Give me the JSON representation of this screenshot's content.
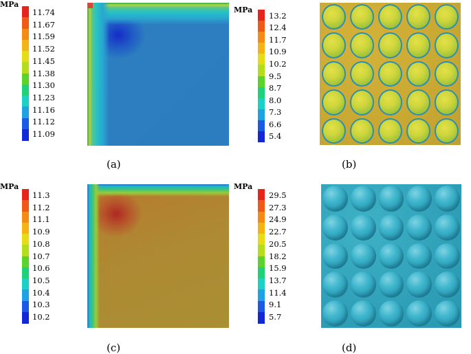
{
  "panels": {
    "a": {
      "caption": "(a)",
      "unit": "MPa",
      "ticks": [
        "11.74",
        "11.67",
        "11.59",
        "11.52",
        "11.45",
        "11.38",
        "11.30",
        "11.23",
        "11.16",
        "11.12",
        "11.09"
      ]
    },
    "a_right": {
      "unit": "MPa",
      "ticks": [
        "13.2",
        "12.4",
        "11.7",
        "10.9",
        "10.2",
        "9.5",
        "8.7",
        "8.0",
        "7.3",
        "6.6",
        "5.4"
      ]
    },
    "b": {
      "caption": "(b)"
    },
    "c": {
      "caption": "(c)",
      "unit": "MPa",
      "ticks": [
        "11.3",
        "11.2",
        "11.1",
        "10.9",
        "10.8",
        "10.7",
        "10.6",
        "10.5",
        "10.4",
        "10.3",
        "10.2"
      ]
    },
    "c_right": {
      "unit": "MPa",
      "ticks": [
        "29.5",
        "27.3",
        "24.9",
        "22.7",
        "20.5",
        "18.2",
        "15.9",
        "13.7",
        "11.4",
        "9.1",
        "5.7"
      ]
    },
    "d": {
      "caption": "(d)"
    }
  },
  "colormap": [
    "#e8231a",
    "#f05a16",
    "#f58a14",
    "#f6b414",
    "#e8dc14",
    "#b4de1a",
    "#5ad42a",
    "#1ed27a",
    "#18d2c8",
    "#1ea2e6",
    "#1a5ae6",
    "#1228d8"
  ]
}
